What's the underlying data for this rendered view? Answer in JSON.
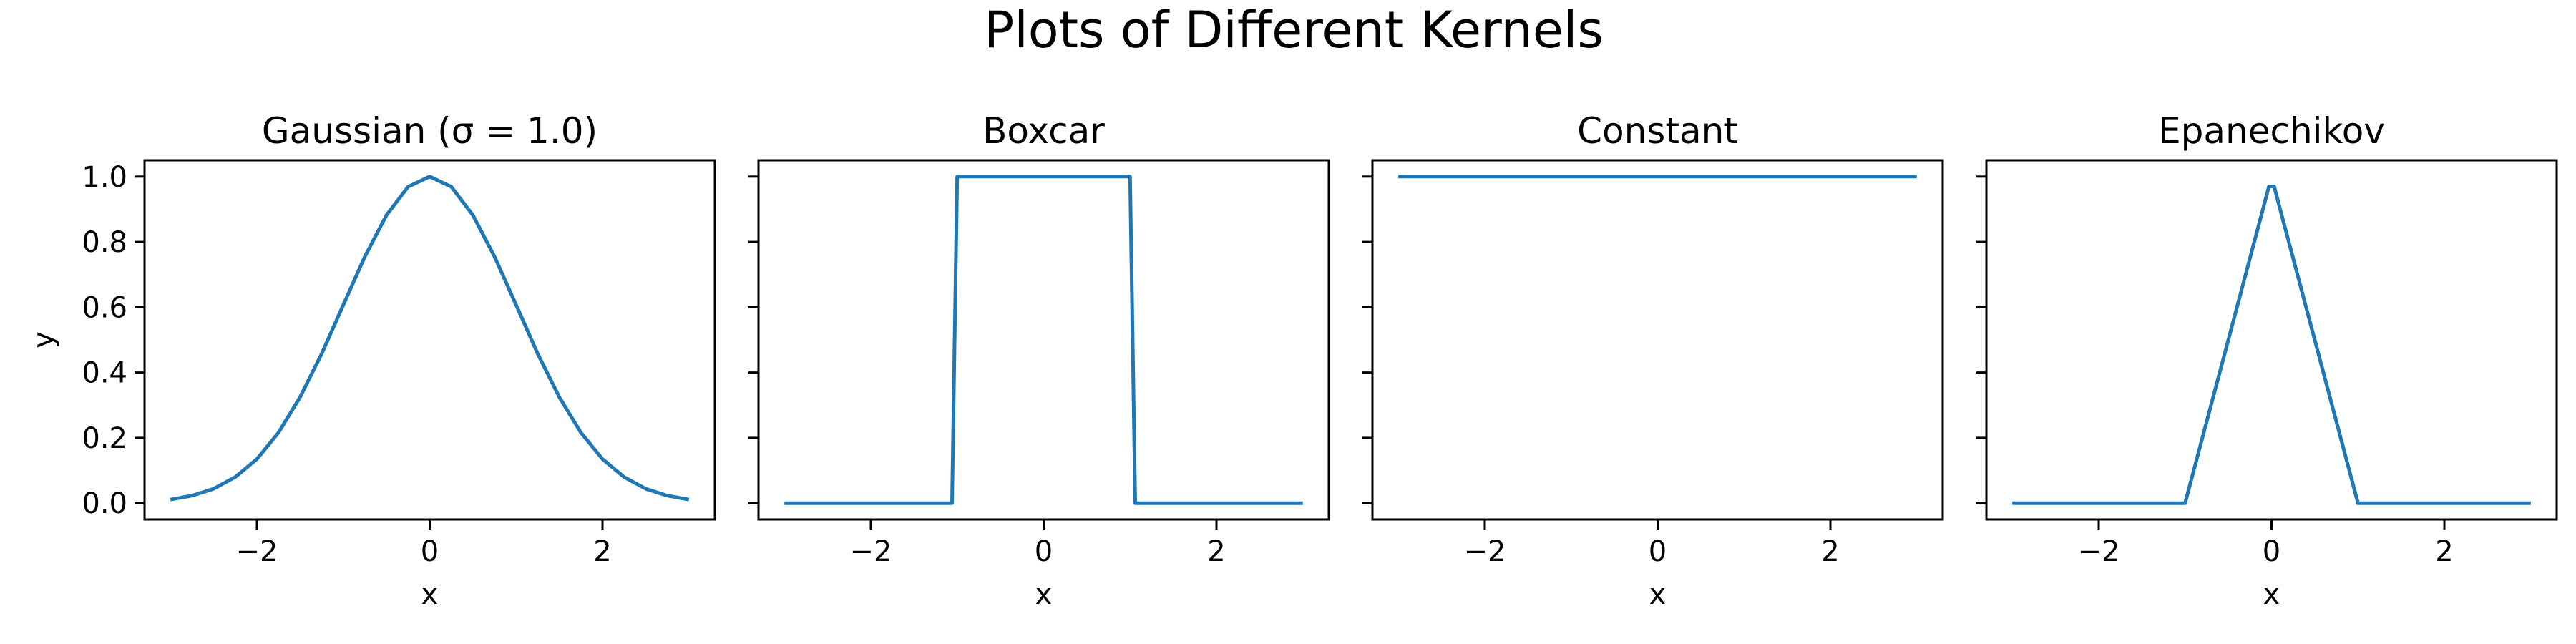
{
  "figure": {
    "suptitle": "Plots of Different Kernels"
  },
  "colors": {
    "line": "#1f77b4",
    "axes": "#000000",
    "background": "#ffffff"
  },
  "chart_data": [
    {
      "type": "line",
      "title": "Gaussian (σ = 1.0)",
      "xlabel": "x",
      "ylabel": "y",
      "xlim": [
        -3.3,
        3.3
      ],
      "ylim": [
        -0.05,
        1.05
      ],
      "xticks": [
        -2,
        0,
        2
      ],
      "xtick_labels": [
        "−2",
        "0",
        "2"
      ],
      "yticks": [
        0.0,
        0.2,
        0.4,
        0.6,
        0.8,
        1.0
      ],
      "ytick_labels": [
        "0.0",
        "0.2",
        "0.4",
        "0.6",
        "0.8",
        "1.0"
      ],
      "grid": false,
      "series": [
        {
          "x": [
            -3.0,
            -2.75,
            -2.5,
            -2.25,
            -2.0,
            -1.75,
            -1.5,
            -1.25,
            -1.0,
            -0.75,
            -0.5,
            -0.25,
            0.0,
            0.25,
            0.5,
            0.75,
            1.0,
            1.25,
            1.5,
            1.75,
            2.0,
            2.25,
            2.5,
            2.75,
            3.0
          ],
          "y": [
            0.011,
            0.023,
            0.044,
            0.08,
            0.135,
            0.216,
            0.325,
            0.458,
            0.607,
            0.755,
            0.882,
            0.969,
            1.0,
            0.969,
            0.882,
            0.755,
            0.607,
            0.458,
            0.325,
            0.216,
            0.135,
            0.08,
            0.044,
            0.023,
            0.011
          ]
        }
      ]
    },
    {
      "type": "line",
      "title": "Boxcar",
      "xlabel": "x",
      "ylabel": "",
      "xlim": [
        -3.3,
        3.3
      ],
      "ylim": [
        -0.05,
        1.05
      ],
      "xticks": [
        -2,
        0,
        2
      ],
      "xtick_labels": [
        "−2",
        "0",
        "2"
      ],
      "yticks": [
        0.0,
        0.2,
        0.4,
        0.6,
        0.8,
        1.0
      ],
      "ytick_labels": [],
      "grid": false,
      "series": [
        {
          "x": [
            -3.0,
            -1.06,
            -1.0,
            1.0,
            1.06,
            3.0
          ],
          "y": [
            0.0,
            0.0,
            1.0,
            1.0,
            0.0,
            0.0
          ]
        }
      ]
    },
    {
      "type": "line",
      "title": "Constant",
      "xlabel": "x",
      "ylabel": "",
      "xlim": [
        -3.3,
        3.3
      ],
      "ylim": [
        -0.05,
        1.05
      ],
      "xticks": [
        -2,
        0,
        2
      ],
      "xtick_labels": [
        "−2",
        "0",
        "2"
      ],
      "yticks": [
        0.0,
        0.2,
        0.4,
        0.6,
        0.8,
        1.0
      ],
      "ytick_labels": [],
      "grid": false,
      "series": [
        {
          "x": [
            -3.0,
            3.0
          ],
          "y": [
            1.0,
            1.0
          ]
        }
      ]
    },
    {
      "type": "line",
      "title": "Epanechikov",
      "xlabel": "x",
      "ylabel": "",
      "xlim": [
        -3.3,
        3.3
      ],
      "ylim": [
        -0.05,
        1.05
      ],
      "xticks": [
        -2,
        0,
        2
      ],
      "xtick_labels": [
        "−2",
        "0",
        "2"
      ],
      "yticks": [
        0.0,
        0.2,
        0.4,
        0.6,
        0.8,
        1.0
      ],
      "ytick_labels": [],
      "grid": false,
      "series": [
        {
          "x": [
            -3.0,
            -1.0,
            -0.03,
            0.03,
            1.0,
            3.0
          ],
          "y": [
            0.0,
            0.0,
            0.97,
            0.97,
            0.0,
            0.0
          ]
        }
      ]
    }
  ]
}
